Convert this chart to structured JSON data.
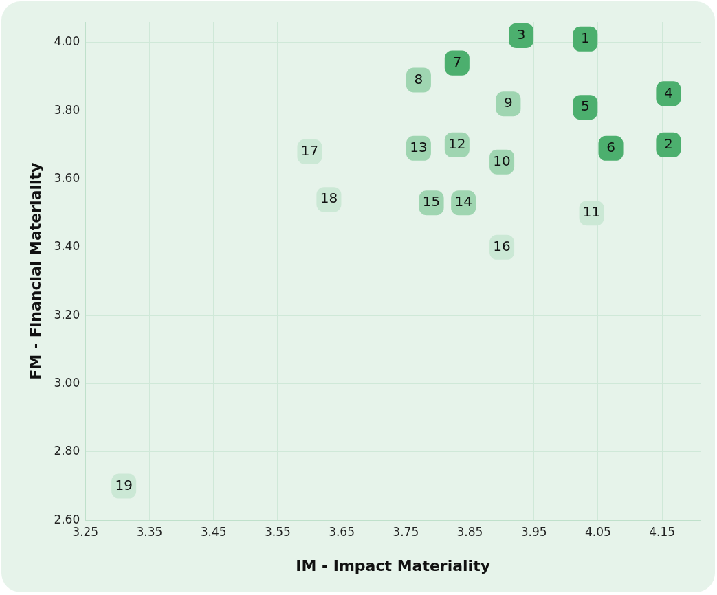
{
  "chart_data": {
    "type": "scatter",
    "xlabel": "IM - Impact Materiality",
    "ylabel": "FM - Financial Materiality",
    "x": [
      4.03,
      4.16,
      3.93,
      4.16,
      4.03,
      4.07,
      3.83,
      3.77,
      3.91,
      3.9,
      4.04,
      3.83,
      3.77,
      3.84,
      3.79,
      3.9,
      3.6,
      3.63,
      3.31
    ],
    "values": [
      4.01,
      3.7,
      4.02,
      3.85,
      3.81,
      3.69,
      3.94,
      3.89,
      3.82,
      3.65,
      3.5,
      3.7,
      3.69,
      3.53,
      3.53,
      3.4,
      3.68,
      3.54,
      2.7
    ],
    "colors": [
      "#4caf6e",
      "#4caf6e",
      "#4caf6e",
      "#4caf6e",
      "#4caf6e",
      "#4caf6e",
      "#4caf6e",
      "#9fd5b1",
      "#9fd5b1",
      "#9fd5b1",
      "#cbe8d5",
      "#9fd5b1",
      "#9fd5b1",
      "#9fd5b1",
      "#9fd5b1",
      "#cbe8d5",
      "#cbe8d5",
      "#cbe8d5",
      "#cbe8d5"
    ],
    "xlim": [
      3.25,
      4.21
    ],
    "xticks": [
      {
        "value": 3.25,
        "label": "3.25"
      },
      {
        "value": 3.35,
        "label": "3.35"
      },
      {
        "value": 3.45,
        "label": "3.45"
      },
      {
        "value": 3.55,
        "label": "3.55"
      },
      {
        "value": 3.65,
        "label": "3.65"
      },
      {
        "value": 3.75,
        "label": "3.75"
      },
      {
        "value": 3.85,
        "label": "3.85"
      },
      {
        "value": 3.95,
        "label": "3.95"
      },
      {
        "value": 4.05,
        "label": "4.05"
      },
      {
        "value": 4.15,
        "label": "4.15"
      }
    ],
    "ylim": [
      2.6,
      4.06
    ],
    "yticks": [
      {
        "value": 2.6,
        "label": "2.60"
      },
      {
        "value": 2.8,
        "label": "2.80"
      },
      {
        "value": 3.0,
        "label": "3.00"
      },
      {
        "value": 3.2,
        "label": "3.20"
      },
      {
        "value": 3.4,
        "label": "3.40"
      },
      {
        "value": 3.6,
        "label": "3.60"
      },
      {
        "value": 3.8,
        "label": "3.80"
      },
      {
        "value": 4.0,
        "label": "4.00"
      }
    ],
    "annotations": [
      {
        "text": "1",
        "x": 4.03,
        "y": 4.01
      },
      {
        "text": "2",
        "x": 4.16,
        "y": 3.7
      },
      {
        "text": "3",
        "x": 3.93,
        "y": 4.02
      },
      {
        "text": "4",
        "x": 4.16,
        "y": 3.85
      },
      {
        "text": "5",
        "x": 4.03,
        "y": 3.81
      },
      {
        "text": "6",
        "x": 4.07,
        "y": 3.69
      },
      {
        "text": "7",
        "x": 3.83,
        "y": 3.94
      },
      {
        "text": "8",
        "x": 3.77,
        "y": 3.89
      },
      {
        "text": "9",
        "x": 3.91,
        "y": 3.82
      },
      {
        "text": "10",
        "x": 3.9,
        "y": 3.65
      },
      {
        "text": "11",
        "x": 4.04,
        "y": 3.5
      },
      {
        "text": "12",
        "x": 3.83,
        "y": 3.7
      },
      {
        "text": "13",
        "x": 3.77,
        "y": 3.69
      },
      {
        "text": "14",
        "x": 3.84,
        "y": 3.53
      },
      {
        "text": "15",
        "x": 3.79,
        "y": 3.53
      },
      {
        "text": "16",
        "x": 3.9,
        "y": 3.4
      },
      {
        "text": "17",
        "x": 3.6,
        "y": 3.68
      },
      {
        "text": "18",
        "x": 3.63,
        "y": 3.54
      },
      {
        "text": "19",
        "x": 3.31,
        "y": 2.7
      }
    ],
    "grid": true,
    "legend": false,
    "marker": "square"
  }
}
